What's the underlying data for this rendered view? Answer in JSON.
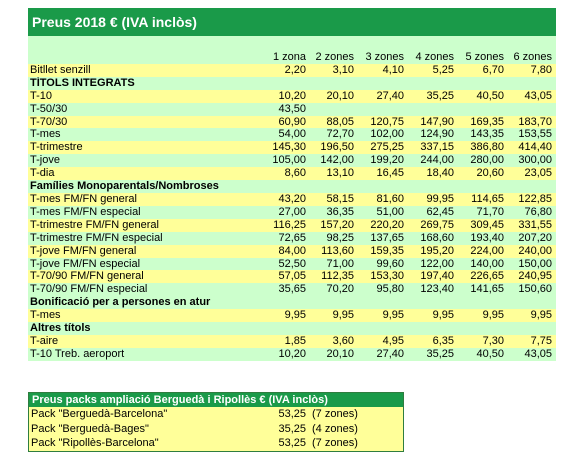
{
  "title": "Preus 2018 € (IVA inclòs)",
  "zones": [
    "1 zona",
    "2 zones",
    "3 zones",
    "4 zones",
    "5 zones",
    "6 zones"
  ],
  "rows": [
    {
      "type": "row",
      "label": "Bitllet senzill",
      "values": [
        "2,20",
        "3,10",
        "4,10",
        "5,25",
        "6,70",
        "7,80"
      ]
    },
    {
      "type": "section",
      "label": "TÍTOLS INTEGRATS"
    },
    {
      "type": "row",
      "label": "T-10",
      "values": [
        "10,20",
        "20,10",
        "27,40",
        "35,25",
        "40,50",
        "43,05"
      ]
    },
    {
      "type": "row",
      "label": "T-50/30",
      "values": [
        "43,50",
        "",
        "",
        "",
        "",
        ""
      ]
    },
    {
      "type": "row",
      "label": "T-70/30",
      "values": [
        "60,90",
        "88,05",
        "120,75",
        "147,90",
        "169,35",
        "183,70"
      ]
    },
    {
      "type": "row",
      "label": "T-mes",
      "values": [
        "54,00",
        "72,70",
        "102,00",
        "124,90",
        "143,35",
        "153,55"
      ]
    },
    {
      "type": "row",
      "label": "T-trimestre",
      "values": [
        "145,30",
        "196,50",
        "275,25",
        "337,15",
        "386,80",
        "414,40"
      ]
    },
    {
      "type": "row",
      "label": "T-jove",
      "values": [
        "105,00",
        "142,00",
        "199,20",
        "244,00",
        "280,00",
        "300,00"
      ]
    },
    {
      "type": "row",
      "label": "T-dia",
      "values": [
        "8,60",
        "13,10",
        "16,45",
        "18,40",
        "20,60",
        "23,05"
      ]
    },
    {
      "type": "section",
      "label": "Famílies Monoparentals/Nombroses"
    },
    {
      "type": "row",
      "label": "T-mes FM/FN general",
      "values": [
        "43,20",
        "58,15",
        "81,60",
        "99,95",
        "114,65",
        "122,85"
      ]
    },
    {
      "type": "row",
      "label": "T-mes FM/FN especial",
      "values": [
        "27,00",
        "36,35",
        "51,00",
        "62,45",
        "71,70",
        "76,80"
      ]
    },
    {
      "type": "row",
      "label": "T-trimestre FM/FN general",
      "values": [
        "116,25",
        "157,20",
        "220,20",
        "269,75",
        "309,45",
        "331,55"
      ]
    },
    {
      "type": "row",
      "label": "T-trimestre FM/FN especial",
      "values": [
        "72,65",
        "98,25",
        "137,65",
        "168,60",
        "193,40",
        "207,20"
      ]
    },
    {
      "type": "row",
      "label": "T-jove FM/FN general",
      "values": [
        "84,00",
        "113,60",
        "159,35",
        "195,20",
        "224,00",
        "240,00"
      ]
    },
    {
      "type": "row",
      "label": "T-jove FM/FN especial",
      "values": [
        "52,50",
        "71,00",
        "99,60",
        "122,00",
        "140,00",
        "150,00"
      ]
    },
    {
      "type": "row",
      "label": "T-70/90 FM/FN general",
      "values": [
        "57,05",
        "112,35",
        "153,30",
        "197,40",
        "226,65",
        "240,95"
      ]
    },
    {
      "type": "row",
      "label": "T-70/90 FM/FN especial",
      "values": [
        "35,65",
        "70,20",
        "95,80",
        "123,40",
        "141,65",
        "150,60"
      ]
    },
    {
      "type": "section",
      "label": "Bonificació per a persones en atur"
    },
    {
      "type": "row",
      "label": "T-mes",
      "values": [
        "9,95",
        "9,95",
        "9,95",
        "9,95",
        "9,95",
        "9,95"
      ]
    },
    {
      "type": "section",
      "label": "Altres títols"
    },
    {
      "type": "row",
      "label": "T-aire",
      "values": [
        "1,85",
        "3,60",
        "4,95",
        "6,35",
        "7,30",
        "7,75"
      ]
    },
    {
      "type": "row",
      "label": "T-10 Treb. aeroport",
      "values": [
        "10,20",
        "20,10",
        "27,40",
        "35,25",
        "40,50",
        "43,05"
      ]
    }
  ],
  "packs": {
    "title": "Preus packs ampliació  Berguedà i Ripollès € (IVA inclòs)",
    "rows": [
      {
        "label": "Pack \"Berguedà-Barcelona\"",
        "price": "53,25",
        "zones": "(7 zones)"
      },
      {
        "label": "Pack \"Berguedà-Bages\"",
        "price": "35,25",
        "zones": "(4 zones)"
      },
      {
        "label": "Pack \"Ripollès-Barcelona\"",
        "price": "53,25",
        "zones": "(7 zones)"
      }
    ]
  },
  "colors": {
    "header_green": "#1a9a49",
    "light_green": "#ccffcc",
    "light_yellow": "#ffff99"
  }
}
